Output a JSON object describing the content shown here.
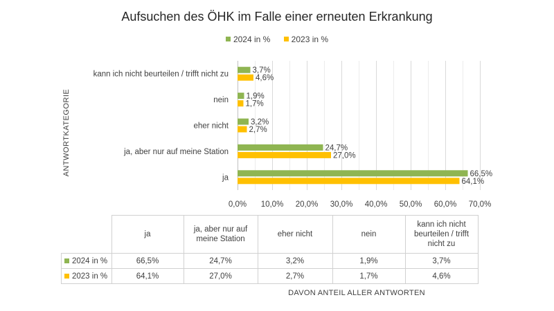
{
  "chart_data": {
    "type": "bar",
    "orientation": "horizontal",
    "title": "Aufsuchen des ÖHK im Falle einer erneuten Erkrankung",
    "xlabel": "DAVON ANTEIL ALLER ANTWORTEN",
    "ylabel": "ANTWORTKATEGORIE",
    "categories": [
      "ja",
      "ja, aber nur auf meine Station",
      "eher nicht",
      "nein",
      "kann ich nicht beurteilen / trifft nicht zu"
    ],
    "table_headers": [
      "ja",
      "ja, aber nur auf meine Station",
      "eher nicht",
      "nein",
      "kann ich nicht beurteilen / trifft nicht zu"
    ],
    "series": [
      {
        "name": "2024 in %",
        "color": "#8fb552",
        "values": [
          66.5,
          24.7,
          3.2,
          1.9,
          3.7
        ],
        "labels": [
          "66,5%",
          "24,7%",
          "3,2%",
          "1,9%",
          "3,7%"
        ]
      },
      {
        "name": "2023 in %",
        "color": "#ffc000",
        "values": [
          64.1,
          27.0,
          2.7,
          1.7,
          4.6
        ],
        "labels": [
          "64,1%",
          "27,0%",
          "2,7%",
          "1,7%",
          "4,6%"
        ]
      }
    ],
    "xticks": [
      "0,0%",
      "10,0%",
      "20,0%",
      "30,0%",
      "40,0%",
      "50,0%",
      "60,0%",
      "70,0%"
    ],
    "xlim": [
      0,
      70
    ],
    "grid": true,
    "legend": "top"
  }
}
